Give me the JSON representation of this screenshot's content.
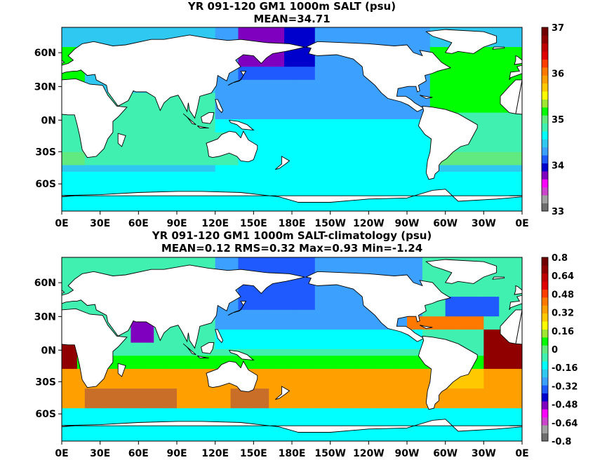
{
  "chart_data": [
    {
      "type": "heatmap",
      "title": "YR 091-120 GM1 1000m SALT (psu)",
      "subtitle": "MEAN=34.71",
      "x_ticks": [
        "0E",
        "30E",
        "60E",
        "90E",
        "120E",
        "150E",
        "180E",
        "150W",
        "120W",
        "90W",
        "60W",
        "30W",
        "0E"
      ],
      "y_ticks": [
        "60N",
        "30N",
        "0N",
        "30S",
        "60S"
      ],
      "colorbar": {
        "ticks": [
          "37",
          "36",
          "35",
          "34",
          "33"
        ],
        "colors": [
          "#6e6e6e",
          "#a0a0a0",
          "#cc44cc",
          "#ff00ff",
          "#8000c0",
          "#0000cc",
          "#1e5aff",
          "#3ca0ff",
          "#2ec8f0",
          "#00ffff",
          "#40f0b0",
          "#60ea80",
          "#00ff00",
          "#a0e632",
          "#ffff00",
          "#ffc800",
          "#ffa000",
          "#ff7800",
          "#ff3c00",
          "#e00000",
          "#c00000",
          "#900000",
          "#700000"
        ]
      }
    },
    {
      "type": "heatmap",
      "title": "YR 091-120 GM1 1000m SALT-climatology (psu)",
      "subtitle": "MEAN=0.12   RMS=0.32   Max=0.93   Min=-1.24",
      "x_ticks": [
        "0E",
        "30E",
        "60E",
        "90E",
        "120E",
        "150E",
        "180E",
        "150W",
        "120W",
        "90W",
        "60W",
        "30W",
        "0E"
      ],
      "y_ticks": [
        "60N",
        "30N",
        "0N",
        "30S",
        "60S"
      ],
      "colorbar": {
        "ticks": [
          "0.8",
          "0.64",
          "0.48",
          "0.32",
          "0.16",
          "0",
          "-0.16",
          "-0.32",
          "-0.48",
          "-0.64",
          "-0.8"
        ],
        "colors": [
          "#6e6e6e",
          "#a0a0a0",
          "#cc44cc",
          "#ff00ff",
          "#8000c0",
          "#0000cc",
          "#1e5aff",
          "#3ca0ff",
          "#2ec8f0",
          "#00ffff",
          "#40f0b0",
          "#60ea80",
          "#00ff00",
          "#a0e632",
          "#ffff00",
          "#ffc800",
          "#ffa000",
          "#ff7800",
          "#ff3c00",
          "#e00000",
          "#c00000",
          "#900000",
          "#700000"
        ]
      }
    }
  ]
}
